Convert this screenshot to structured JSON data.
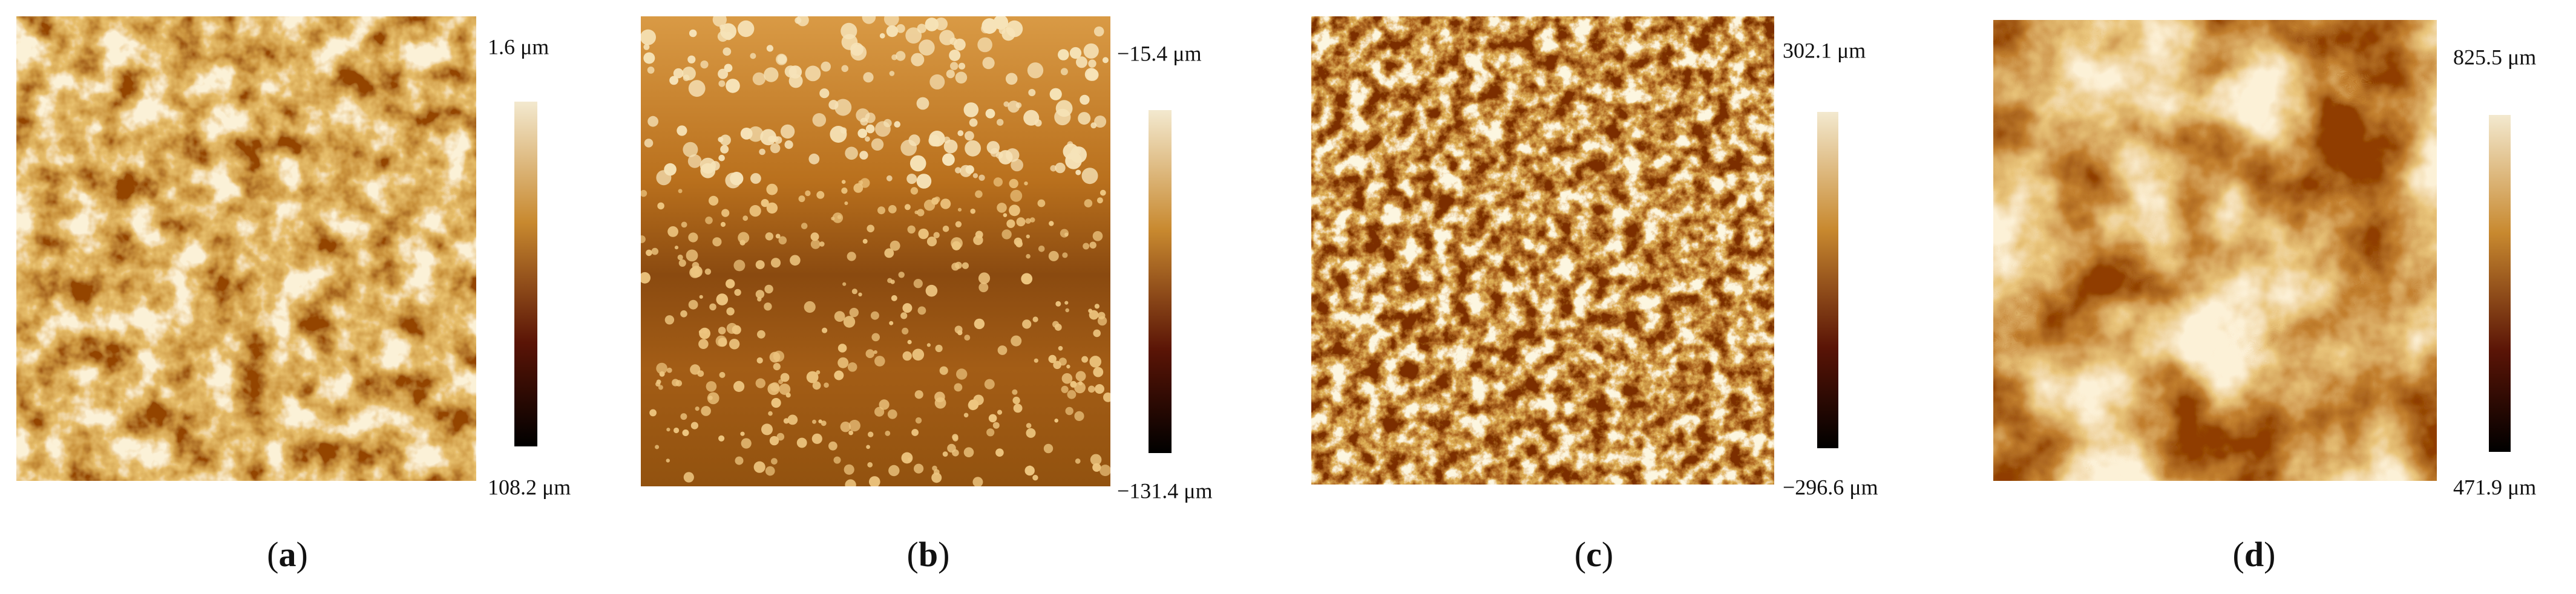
{
  "panels": [
    {
      "label": {
        "open": "(",
        "letter": "a",
        "close": ")"
      },
      "scale_top": "1.6 μm",
      "scale_bottom": "108.2 μm"
    },
    {
      "label": {
        "open": "(",
        "letter": "b",
        "close": ")"
      },
      "scale_top": "−15.4 μm",
      "scale_bottom": "−131.4 μm"
    },
    {
      "label": {
        "open": "(",
        "letter": "c",
        "close": ")"
      },
      "scale_top": "302.1 μm",
      "scale_bottom": "−296.6 μm"
    },
    {
      "label": {
        "open": "(",
        "letter": "d",
        "close": ")"
      },
      "scale_top": "825.5 μm",
      "scale_bottom": "471.9 μm"
    }
  ]
}
